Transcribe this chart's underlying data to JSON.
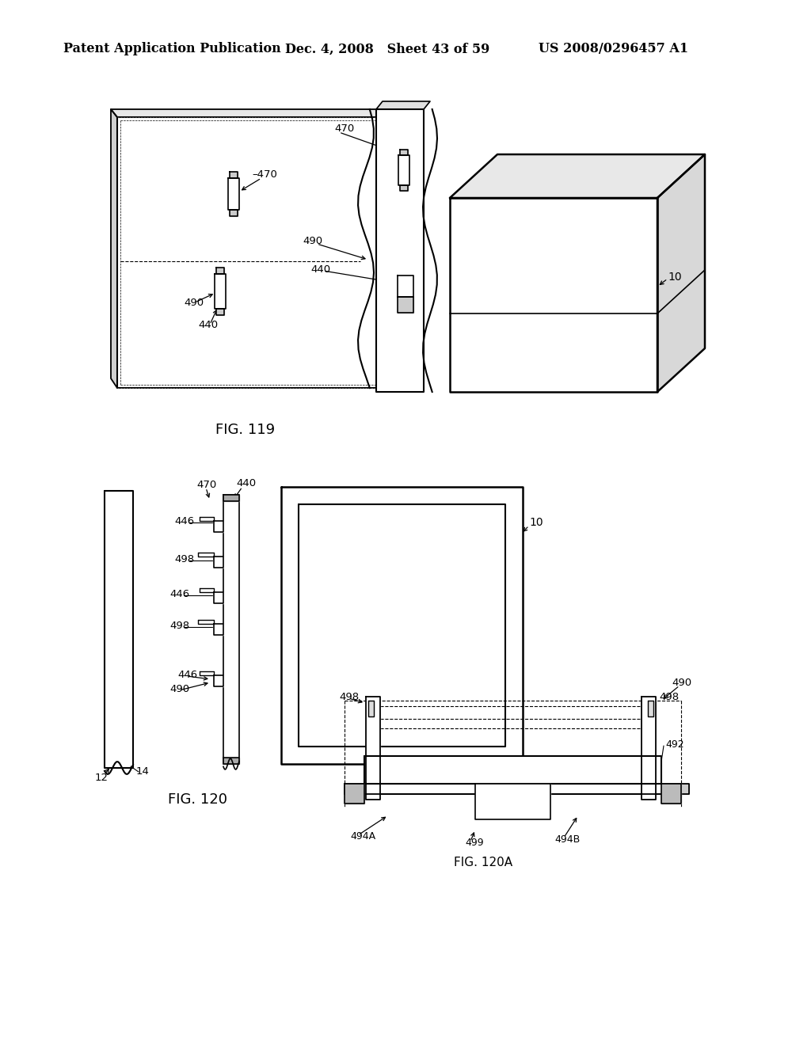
{
  "bg_color": "#ffffff",
  "header_left": "Patent Application Publication",
  "header_mid": "Dec. 4, 2008   Sheet 43 of 59",
  "header_right": "US 2008/0296457 A1",
  "fig119_label": "FIG. 119",
  "fig120_label": "FIG. 120",
  "fig120a_label": "FIG. 120A",
  "header_fontsize": 11.5,
  "label_fontsize": 9.5,
  "caption_fontsize": 13
}
